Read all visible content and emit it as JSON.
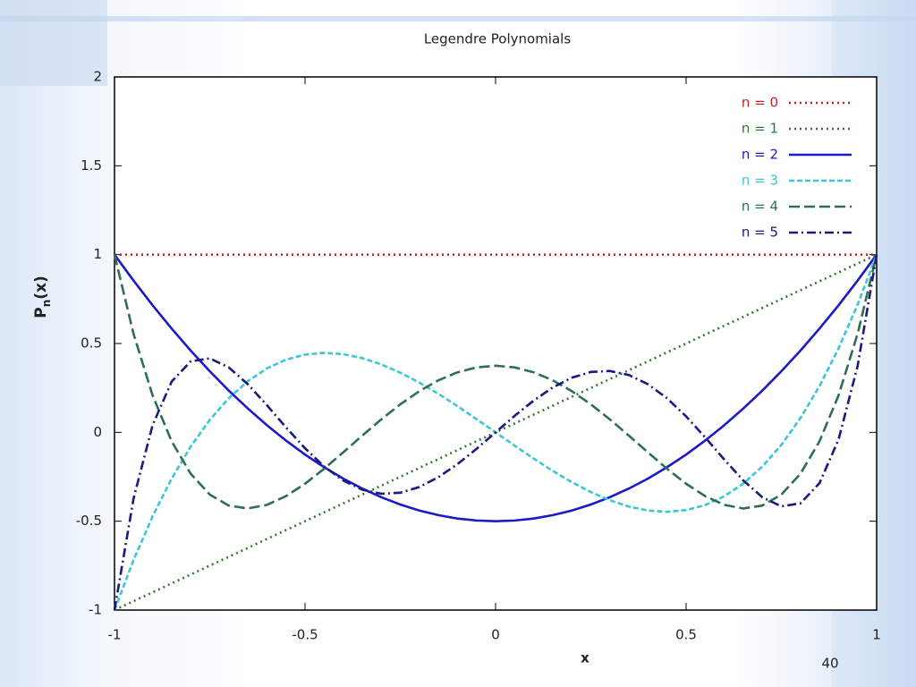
{
  "chart_data": {
    "type": "line",
    "title": "Legendre Polynomials",
    "xlabel": "x",
    "ylabel_parts": [
      "P",
      "n",
      "(x)"
    ],
    "x": [
      -1,
      -0.95,
      -0.9,
      -0.85,
      -0.8,
      -0.75,
      -0.7,
      -0.65,
      -0.6,
      -0.55,
      -0.5,
      -0.45,
      -0.4,
      -0.35,
      -0.3,
      -0.25,
      -0.2,
      -0.15,
      -0.1,
      -0.05,
      0,
      0.05,
      0.1,
      0.15,
      0.2,
      0.25,
      0.3,
      0.35,
      0.4,
      0.45,
      0.5,
      0.55,
      0.6,
      0.65,
      0.7,
      0.75,
      0.8,
      0.85,
      0.9,
      0.95,
      1
    ],
    "series": [
      {
        "name": "n = 0",
        "color": "#cc2222",
        "dash": "dotted",
        "values": [
          1,
          1,
          1,
          1,
          1,
          1,
          1,
          1,
          1,
          1,
          1,
          1,
          1,
          1,
          1,
          1,
          1,
          1,
          1,
          1,
          1,
          1,
          1,
          1,
          1,
          1,
          1,
          1,
          1,
          1,
          1,
          1,
          1,
          1,
          1,
          1,
          1,
          1,
          1,
          1,
          1
        ]
      },
      {
        "name": "n = 1",
        "color": "#2f7a2f",
        "dash": "dotted",
        "values": [
          -1,
          -0.95,
          -0.9,
          -0.85,
          -0.8,
          -0.75,
          -0.7,
          -0.65,
          -0.6,
          -0.55,
          -0.5,
          -0.45,
          -0.4,
          -0.35,
          -0.3,
          -0.25,
          -0.2,
          -0.15,
          -0.1,
          -0.05,
          0,
          0.05,
          0.1,
          0.15,
          0.2,
          0.25,
          0.3,
          0.35,
          0.4,
          0.45,
          0.5,
          0.55,
          0.6,
          0.65,
          0.7,
          0.75,
          0.8,
          0.85,
          0.9,
          0.95,
          1
        ]
      },
      {
        "name": "n = 2",
        "color": "#1a1acc",
        "dash": "solid",
        "values": [
          1,
          0.854,
          0.715,
          0.584,
          0.46,
          0.344,
          0.235,
          0.134,
          0.04,
          -0.046,
          -0.125,
          -0.196,
          -0.26,
          -0.316,
          -0.365,
          -0.406,
          -0.44,
          -0.466,
          -0.485,
          -0.496,
          -0.5,
          -0.496,
          -0.485,
          -0.466,
          -0.44,
          -0.406,
          -0.365,
          -0.316,
          -0.26,
          -0.196,
          -0.125,
          -0.046,
          0.04,
          0.134,
          0.235,
          0.344,
          0.46,
          0.584,
          0.715,
          0.854,
          1
        ]
      },
      {
        "name": "n = 3",
        "color": "#3cc6d6",
        "dash": "dashed",
        "values": [
          -1,
          -0.7184,
          -0.4725,
          -0.2603,
          -0.08,
          0.0703,
          0.1925,
          0.2884,
          0.36,
          0.4091,
          0.4375,
          0.4472,
          0.44,
          0.4178,
          0.3825,
          0.3359,
          0.28,
          0.2166,
          0.1475,
          0.0747,
          0,
          -0.0747,
          -0.1475,
          -0.2166,
          -0.28,
          -0.3359,
          -0.3825,
          -0.4178,
          -0.44,
          -0.4472,
          -0.4375,
          -0.4091,
          -0.36,
          -0.2884,
          -0.1925,
          -0.0703,
          0.08,
          0.2603,
          0.4725,
          0.7184,
          1
        ]
      },
      {
        "name": "n = 4",
        "color": "#2e6e52",
        "dash": "longdash",
        "values": [
          1,
          0.5541,
          0.2079,
          -0.0506,
          -0.233,
          -0.3501,
          -0.4121,
          -0.4284,
          -0.408,
          -0.359,
          -0.2891,
          -0.205,
          -0.113,
          -0.0187,
          0.0729,
          0.1577,
          0.232,
          0.2928,
          0.3379,
          0.3657,
          0.375,
          0.3657,
          0.3379,
          0.2928,
          0.232,
          0.1577,
          0.0729,
          -0.0187,
          -0.113,
          -0.205,
          -0.2891,
          -0.359,
          -0.408,
          -0.4284,
          -0.4121,
          -0.3501,
          -0.233,
          -0.0506,
          0.2079,
          0.5541,
          1
        ]
      },
      {
        "name": "n = 5",
        "color": "#1a1a80",
        "dash": "dashdot",
        "values": [
          -1,
          -0.3727,
          0.0411,
          0.2857,
          0.3995,
          0.4164,
          0.3652,
          0.2705,
          0.1526,
          0.0282,
          -0.0898,
          -0.1917,
          -0.2706,
          -0.3225,
          -0.3454,
          -0.3397,
          -0.3075,
          -0.2523,
          -0.1788,
          -0.0927,
          0,
          0.0927,
          0.1788,
          0.2523,
          0.3075,
          0.3397,
          0.3454,
          0.3225,
          0.2706,
          0.1917,
          0.0898,
          -0.0282,
          -0.1526,
          -0.2705,
          -0.3652,
          -0.4164,
          -0.3995,
          -0.2857,
          -0.0411,
          0.3727,
          1
        ]
      }
    ],
    "xlim": [
      -1,
      1
    ],
    "ylim": [
      -1,
      2
    ],
    "xticks": [
      -1,
      -0.5,
      0,
      0.5,
      1
    ],
    "yticks": [
      -1,
      -0.5,
      0,
      0.5,
      1,
      1.5,
      2
    ],
    "legend": "top-right",
    "grid": false
  },
  "slide": {
    "page_number": "40"
  }
}
